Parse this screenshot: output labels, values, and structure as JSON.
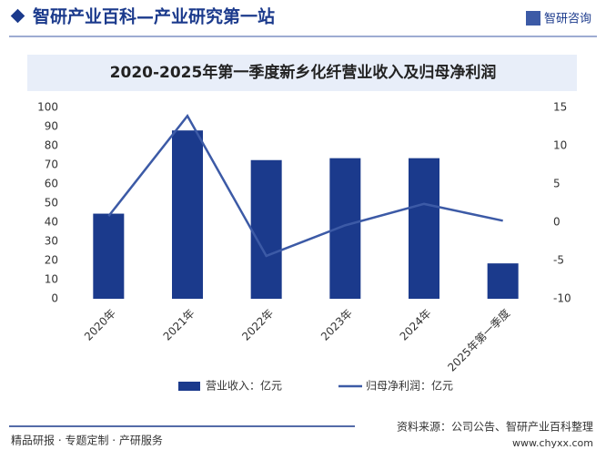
{
  "header": {
    "title": "智研产业百科—产业研究第一站",
    "logo": "智研咨询"
  },
  "chart_data": {
    "type": "bar",
    "title": "2020-2025年第一季度新乡化纤营业收入及归母净利润",
    "categories": [
      "2020年",
      "2021年",
      "2022年",
      "2023年",
      "2024年",
      "2025年第一季度"
    ],
    "series": [
      {
        "name": "营业收入：亿元",
        "type": "bar",
        "color": "#1b3a8c",
        "values": [
          44.5,
          88,
          72.5,
          73.5,
          73.5,
          18.5
        ]
      },
      {
        "name": "归母净利润：亿元",
        "type": "line",
        "axis": "y2",
        "color": "#3c5aa6",
        "values": [
          0.8,
          13.9,
          -4.4,
          -0.4,
          2.4,
          0.2
        ]
      }
    ],
    "ylim": [
      0,
      100
    ],
    "yticks": [
      0,
      10,
      20,
      30,
      40,
      50,
      60,
      70,
      80,
      90,
      100
    ],
    "y2lim": [
      -10,
      15
    ],
    "y2ticks": [
      -10,
      -5,
      0,
      5,
      10,
      15
    ],
    "grid": false,
    "legend": "bottom"
  },
  "footer": {
    "left": "精品研报 · 专题定制 · 产研服务",
    "source": "资料来源：公司公告、智研产业百科整理",
    "site": "www.chyxx.com"
  }
}
